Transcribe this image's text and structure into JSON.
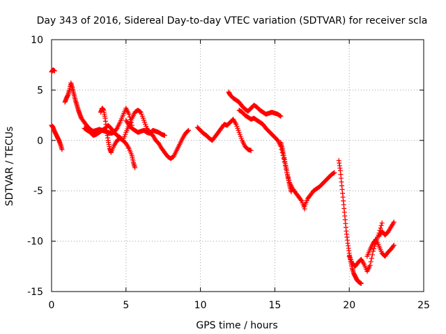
{
  "chart_data": {
    "type": "scatter",
    "title": "Day 343 of 2016, Sidereal Day-to-day VTEC variation (SDTVAR) for receiver scla",
    "xlabel": "GPS time / hours",
    "ylabel": "SDTVAR / TECUs",
    "xlim": [
      0,
      25
    ],
    "ylim": [
      -15,
      10
    ],
    "xticks": [
      "0",
      "5",
      "10",
      "15",
      "20",
      "25"
    ],
    "yticks": [
      "10",
      "5",
      "0",
      "-5",
      "-10",
      "-15"
    ],
    "grid": true,
    "legend": "none",
    "marker": "+",
    "series_color": "#ff0000",
    "series": [
      {
        "name": "s1",
        "x": [
          0.0,
          0.1,
          0.2
        ],
        "y": [
          6.8,
          7.0,
          6.9
        ]
      },
      {
        "name": "s2",
        "x": [
          0.0,
          0.1,
          0.2,
          0.3,
          0.4,
          0.5,
          0.6,
          0.7
        ],
        "y": [
          1.5,
          1.3,
          0.9,
          0.6,
          0.3,
          0.0,
          -0.4,
          -0.9
        ]
      },
      {
        "name": "s3",
        "x": [
          0.9,
          1.0,
          1.1,
          1.2,
          1.3,
          1.4,
          1.5,
          1.6,
          1.7,
          1.8,
          1.9,
          2.0,
          2.2,
          2.4,
          2.6,
          2.8,
          3.0,
          3.2,
          3.4,
          3.6,
          3.8,
          4.0,
          4.2,
          4.4,
          4.6,
          4.8,
          5.0,
          5.2,
          5.4
        ],
        "y": [
          3.8,
          4.2,
          4.5,
          5.0,
          5.7,
          5.2,
          4.6,
          4.0,
          3.5,
          3.0,
          2.6,
          2.2,
          1.8,
          1.4,
          1.1,
          0.9,
          1.0,
          1.1,
          1.0,
          0.9,
          0.8,
          0.7,
          0.8,
          1.2,
          1.8,
          2.5,
          3.2,
          2.6,
          1.5
        ]
      },
      {
        "name": "s4",
        "x": [
          3.3,
          3.4,
          3.5,
          3.6,
          3.7,
          3.8,
          3.9,
          4.0,
          4.2,
          4.4,
          4.6,
          4.8,
          5.0,
          5.2,
          5.4,
          5.5,
          5.6
        ],
        "y": [
          2.8,
          3.2,
          3.0,
          2.2,
          1.0,
          0.0,
          -0.8,
          -1.2,
          -0.5,
          0.0,
          0.2,
          0.0,
          -0.3,
          -0.8,
          -1.5,
          -2.2,
          -2.7
        ]
      },
      {
        "name": "s5",
        "x": [
          2.2,
          2.4,
          2.6,
          2.8,
          3.0,
          3.2,
          3.4,
          3.6,
          3.8,
          4.0,
          4.2,
          4.4,
          4.6,
          4.8,
          5.0,
          5.2,
          5.4,
          5.6,
          5.8,
          6.0,
          6.2,
          6.4,
          6.6,
          6.8,
          7.0,
          7.2,
          7.4,
          7.6,
          7.8,
          8.0,
          8.2,
          8.4,
          8.6,
          8.8,
          9.0,
          9.2
        ],
        "y": [
          1.2,
          1.0,
          0.8,
          0.5,
          0.6,
          0.8,
          1.0,
          1.2,
          1.5,
          1.2,
          0.8,
          0.5,
          0.3,
          0.0,
          0.8,
          1.5,
          2.2,
          2.8,
          3.0,
          2.8,
          2.0,
          1.2,
          0.8,
          0.5,
          0.0,
          -0.3,
          -0.8,
          -1.2,
          -1.6,
          -1.8,
          -1.6,
          -1.0,
          -0.4,
          0.2,
          0.7,
          1.0
        ]
      },
      {
        "name": "s6",
        "x": [
          5.0,
          5.2,
          5.4,
          5.6,
          5.8,
          6.0,
          6.2,
          6.4,
          6.6,
          6.8,
          7.0,
          7.2,
          7.4,
          7.6
        ],
        "y": [
          2.0,
          1.5,
          1.2,
          1.0,
          0.8,
          0.9,
          1.0,
          0.8,
          0.7,
          1.0,
          0.9,
          0.8,
          0.6,
          0.5
        ]
      },
      {
        "name": "s7",
        "x": [
          9.8,
          10.0,
          10.2,
          10.4,
          10.6,
          10.8,
          11.0,
          11.2,
          11.4,
          11.6,
          11.8,
          12.0,
          12.2,
          12.4,
          12.6,
          12.8,
          13.0,
          13.2,
          13.4
        ],
        "y": [
          1.3,
          1.0,
          0.7,
          0.5,
          0.2,
          0.0,
          0.4,
          0.8,
          1.2,
          1.6,
          1.5,
          1.8,
          2.1,
          1.6,
          0.8,
          0.0,
          -0.6,
          -0.9,
          -1.0
        ]
      },
      {
        "name": "s8",
        "x": [
          11.9,
          12.0,
          12.2,
          12.4,
          12.6,
          12.8,
          13.0,
          13.2,
          13.4,
          13.6,
          13.8,
          14.0,
          14.2,
          14.4,
          14.6,
          14.8,
          15.0,
          15.2,
          15.4
        ],
        "y": [
          4.8,
          4.5,
          4.2,
          4.0,
          3.8,
          3.4,
          3.1,
          2.9,
          3.2,
          3.5,
          3.3,
          3.0,
          2.8,
          2.6,
          2.7,
          2.8,
          2.7,
          2.6,
          2.4
        ]
      },
      {
        "name": "s9",
        "x": [
          12.6,
          12.8,
          13.0,
          13.2,
          13.4,
          13.6,
          13.8,
          14.0,
          14.2,
          14.4,
          14.6,
          14.8,
          15.0,
          15.2,
          15.4,
          15.6,
          15.8,
          16.0,
          16.2,
          16.4,
          16.6,
          16.8,
          17.0
        ],
        "y": [
          3.0,
          2.8,
          2.5,
          2.3,
          2.1,
          2.2,
          2.0,
          1.8,
          1.6,
          1.2,
          0.9,
          0.6,
          0.3,
          0.0,
          -0.6,
          -1.8,
          -3.2,
          -4.2,
          -4.8,
          -5.2,
          -5.6,
          -6.0,
          -6.8
        ]
      },
      {
        "name": "s10",
        "x": [
          15.4,
          15.5,
          15.6,
          15.7,
          15.8,
          15.9,
          16.0,
          16.1
        ],
        "y": [
          -0.2,
          -0.8,
          -1.5,
          -2.3,
          -3.0,
          -3.8,
          -4.5,
          -5.1
        ]
      },
      {
        "name": "s11",
        "x": [
          17.0,
          17.2,
          17.4,
          17.6,
          17.8,
          18.0,
          18.2,
          18.4,
          18.6,
          18.8,
          19.0
        ],
        "y": [
          -6.5,
          -5.8,
          -5.4,
          -5.0,
          -4.8,
          -4.6,
          -4.3,
          -4.0,
          -3.7,
          -3.4,
          -3.2
        ]
      },
      {
        "name": "s12",
        "x": [
          19.3,
          19.4,
          19.5,
          19.6,
          19.7,
          19.8,
          19.9,
          20.0,
          20.1,
          20.2,
          20.3,
          20.4,
          20.5,
          20.6,
          20.7,
          20.8
        ],
        "y": [
          -2.0,
          -3.0,
          -4.5,
          -6.0,
          -7.5,
          -9.0,
          -10.2,
          -11.2,
          -12.0,
          -12.7,
          -13.2,
          -13.5,
          -13.8,
          -14.0,
          -14.1,
          -14.2
        ]
      },
      {
        "name": "s13",
        "x": [
          20.0,
          20.2,
          20.4,
          20.6,
          20.8,
          21.0,
          21.2,
          21.4,
          21.6,
          21.8,
          22.0,
          22.2
        ],
        "y": [
          -11.5,
          -12.2,
          -12.5,
          -12.1,
          -11.8,
          -12.3,
          -13.0,
          -12.4,
          -11.0,
          -10.0,
          -9.2,
          -8.2
        ]
      },
      {
        "name": "s14",
        "x": [
          21.2,
          21.4,
          21.6,
          21.8,
          22.0,
          22.2,
          22.4,
          22.6,
          22.8,
          23.0
        ],
        "y": [
          -11.5,
          -10.8,
          -10.2,
          -9.8,
          -10.5,
          -11.2,
          -11.5,
          -11.1,
          -10.8,
          -10.4
        ]
      },
      {
        "name": "s15",
        "x": [
          22.0,
          22.2,
          22.4,
          22.6,
          22.8,
          23.0
        ],
        "y": [
          -9.5,
          -9.0,
          -9.4,
          -9.1,
          -8.6,
          -8.1
        ]
      }
    ]
  }
}
